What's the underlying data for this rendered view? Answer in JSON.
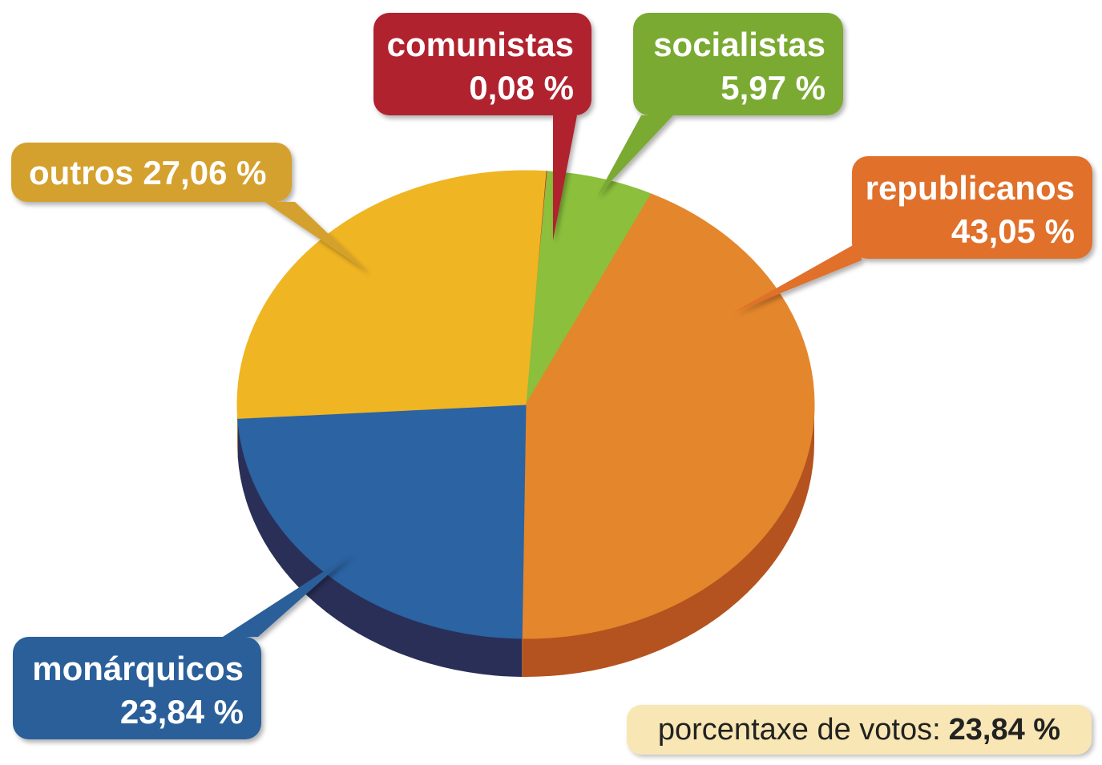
{
  "chart_data": {
    "type": "pie",
    "slices": [
      {
        "label": "comunistas",
        "value": 0.08,
        "value_text": "0,08 %",
        "color": "#be2230",
        "side_color": "#7a1520"
      },
      {
        "label": "socialistas",
        "value": 5.97,
        "value_text": "5,97 %",
        "color": "#8bbf3c",
        "side_color": "#5b8426"
      },
      {
        "label": "republicanos",
        "value": 43.05,
        "value_text": "43,05 %",
        "color": "#e4862c",
        "side_color": "#b4531f"
      },
      {
        "label": "monárquicos",
        "value": 23.84,
        "value_text": "23,84 %",
        "color": "#2b63a3",
        "side_color": "#2a2f57"
      },
      {
        "label": "outros",
        "value": 27.06,
        "value_text": "27,06 %",
        "color": "#efb523",
        "side_color": "#b98817"
      }
    ],
    "callout_colors": {
      "comunistas": "#b0202e",
      "socialistas": "#7aaa33",
      "republicanos": "#e0702a",
      "monárquicos": "#2a5f9a",
      "outros": "#d5a12e"
    },
    "note": {
      "label": "porcentaxe de votos:",
      "value": "23,84 %"
    }
  }
}
